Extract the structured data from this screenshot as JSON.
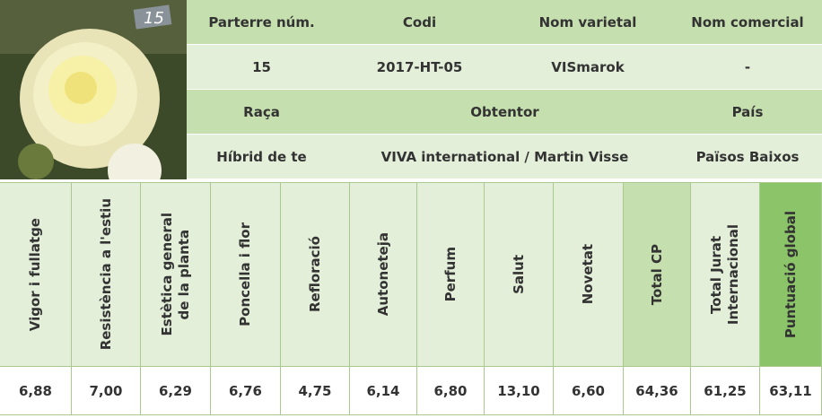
{
  "info": {
    "rows": [
      [
        "Parterre núm.",
        "Codi",
        "Nom varietal",
        "Nom comercial"
      ],
      [
        "15",
        "2017-HT-05",
        "VISmarok",
        "-"
      ],
      [
        "Raça",
        "Obtentor",
        "País"
      ],
      [
        "Híbrid de te",
        "VIVA international / Martin Visse",
        "Països Baixos"
      ]
    ]
  },
  "scores": {
    "headers": [
      [
        "Vigor i fullatge"
      ],
      [
        "Resistència a l'estiu"
      ],
      [
        "Estètica general",
        "de la planta"
      ],
      [
        "Poncella i flor"
      ],
      [
        "Refloració"
      ],
      [
        "Autoneteja"
      ],
      [
        "Perfum"
      ],
      [
        "Salut"
      ],
      [
        "Novetat"
      ],
      [
        "Total CP"
      ],
      [
        "Total Jurat",
        "Internacional"
      ],
      [
        "Puntuació global"
      ]
    ],
    "values": [
      "6,88",
      "7,00",
      "6,29",
      "6,76",
      "4,75",
      "6,14",
      "6,80",
      "13,10",
      "6,60",
      "64,36",
      "61,25",
      "63,11"
    ]
  }
}
